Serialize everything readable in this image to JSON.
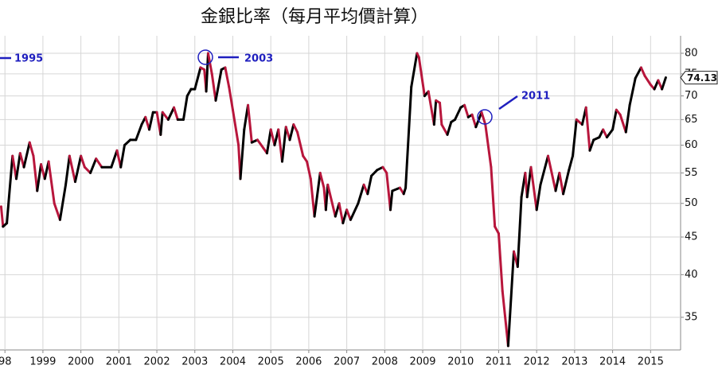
{
  "chart_data": {
    "type": "line",
    "title": "金銀比率（每月平均價計算）",
    "x": [
      1997.9,
      1997.95,
      1998.05,
      1998.2,
      1998.3,
      1998.4,
      1998.5,
      1998.65,
      1998.75,
      1998.85,
      1998.95,
      1999.05,
      1999.15,
      1999.3,
      1999.45,
      1999.6,
      1999.7,
      1999.85,
      2000,
      2000.1,
      2000.25,
      2000.4,
      2000.55,
      2000.8,
      2000.95,
      2001.05,
      2001.15,
      2001.3,
      2001.45,
      2001.6,
      2001.7,
      2001.8,
      2001.9,
      2002,
      2002.1,
      2002.15,
      2002.3,
      2002.45,
      2002.55,
      2002.7,
      2002.8,
      2002.9,
      2003,
      2003.15,
      2003.25,
      2003.3,
      2003.35,
      2003.45,
      2003.55,
      2003.7,
      2003.8,
      2003.9,
      2004,
      2004.15,
      2004.2,
      2004.3,
      2004.4,
      2004.5,
      2004.65,
      2004.8,
      2004.9,
      2005,
      2005.1,
      2005.2,
      2005.3,
      2005.4,
      2005.5,
      2005.6,
      2005.7,
      2005.85,
      2005.95,
      2006.05,
      2006.15,
      2006.3,
      2006.4,
      2006.45,
      2006.5,
      2006.7,
      2006.8,
      2006.9,
      2007,
      2007.1,
      2007.3,
      2007.45,
      2007.55,
      2007.65,
      2007.8,
      2007.95,
      2008.05,
      2008.15,
      2008.2,
      2008.4,
      2008.5,
      2008.55,
      2008.7,
      2008.85,
      2008.9,
      2009.05,
      2009.15,
      2009.3,
      2009.35,
      2009.45,
      2009.5,
      2009.65,
      2009.75,
      2009.85,
      2010,
      2010.1,
      2010.2,
      2010.3,
      2010.4,
      2010.55,
      2010.65,
      2010.8,
      2010.9,
      2011,
      2011.1,
      2011.25,
      2011.4,
      2011.5,
      2011.6,
      2011.7,
      2011.75,
      2011.85,
      2012,
      2012.1,
      2012.3,
      2012.5,
      2012.6,
      2012.7,
      2012.85,
      2012.95,
      2013.05,
      2013.2,
      2013.3,
      2013.4,
      2013.5,
      2013.65,
      2013.75,
      2013.85,
      2014,
      2014.1,
      2014.2,
      2014.35,
      2014.45,
      2014.6,
      2014.75,
      2014.85,
      2015,
      2015.1,
      2015.2,
      2015.3,
      2015.4
    ],
    "y": [
      49.5,
      46.5,
      47,
      58,
      54,
      58.5,
      56,
      60.5,
      58,
      52,
      56.5,
      54,
      57,
      50,
      47.5,
      53,
      58,
      53.5,
      58,
      56,
      55,
      57.5,
      56,
      56,
      59,
      56,
      60,
      61,
      61,
      64,
      65.5,
      63,
      66.5,
      66.5,
      62,
      66.5,
      65,
      67.5,
      65,
      65,
      70,
      71.5,
      71.5,
      76.5,
      76,
      71,
      80,
      75,
      69,
      76,
      76.5,
      72,
      67,
      60,
      54,
      63,
      68,
      60.5,
      61,
      59.5,
      58.5,
      63,
      60,
      63,
      57,
      63.5,
      61,
      64,
      62.5,
      58,
      57,
      54,
      48,
      55,
      52.5,
      49,
      53,
      48,
      50,
      47,
      49,
      47.5,
      50,
      53,
      51.5,
      54.5,
      55.5,
      56,
      55,
      49,
      52,
      52.5,
      51.5,
      52.5,
      72,
      80,
      79,
      70,
      71,
      64,
      69,
      68.5,
      64,
      62,
      64.5,
      65,
      67.5,
      68,
      65.5,
      66,
      63.5,
      66.5,
      64,
      56,
      46.5,
      45.5,
      38,
      32,
      43,
      41,
      51,
      55,
      51,
      56,
      49,
      53,
      58,
      52,
      55,
      51.5,
      55.5,
      58,
      65,
      64,
      67.5,
      59,
      61,
      61.5,
      63,
      61.5,
      63,
      67,
      66,
      62.5,
      68,
      74,
      76.5,
      74.5,
      72.5,
      71.5,
      73.5,
      71.5,
      74.13
    ],
    "up_color": "#000000",
    "down_color": "#b8163c",
    "xlim": [
      1997.87,
      2015.79
    ],
    "xticks": [
      {
        "value": 1998,
        "label": "98"
      },
      1999,
      2000,
      2001,
      2002,
      2003,
      2004,
      2005,
      2006,
      2007,
      2008,
      2009,
      2010,
      2011,
      2012,
      2013,
      2014,
      2015
    ],
    "ylim": [
      31.6,
      84.5
    ],
    "yticks": [
      35,
      40,
      45,
      50,
      55,
      60,
      65,
      70,
      75,
      80
    ],
    "log_y": true,
    "grid": true,
    "annotations": [
      "1995",
      "2003",
      "2011"
    ],
    "annotation_color": "#1f1fbf"
  }
}
